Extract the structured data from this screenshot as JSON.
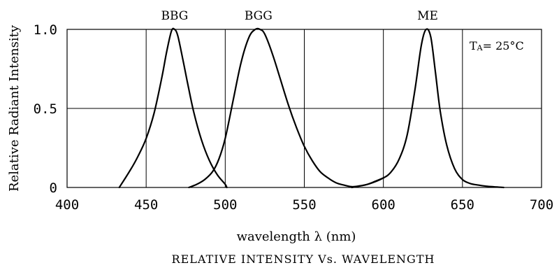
{
  "chart_data": {
    "type": "line",
    "title": "RELATIVE INTENSITY Vs. WAVELENGTH",
    "xlabel": "wavelength λ (nm)",
    "ylabel": "Relative Radiant Intensity",
    "annotation": {
      "prefix": "T",
      "sub": "A",
      "suffix": "= 25°C"
    },
    "xlim": [
      400,
      700
    ],
    "ylim": [
      0,
      1.0
    ],
    "x_ticks": [
      400,
      450,
      500,
      550,
      600,
      650,
      700
    ],
    "x_tick_labels": [
      "400",
      "450",
      "500",
      "550",
      "600",
      "650",
      "700"
    ],
    "y_ticks": [
      0,
      0.5,
      1.0
    ],
    "y_tick_labels": [
      "0",
      "0.5",
      "1.0"
    ],
    "grid": true,
    "series": [
      {
        "name": "BBG",
        "x": [
          433,
          440,
          445,
          450,
          455,
          460,
          463,
          466,
          468,
          470,
          473,
          476,
          480,
          485,
          490,
          495,
          500,
          501
        ],
        "y": [
          0.0,
          0.11,
          0.2,
          0.31,
          0.47,
          0.7,
          0.86,
          0.99,
          1.0,
          0.96,
          0.82,
          0.67,
          0.48,
          0.3,
          0.17,
          0.08,
          0.02,
          0.0
        ]
      },
      {
        "name": "BGG",
        "x": [
          477,
          482,
          487,
          492,
          496,
          500,
          505,
          510,
          515,
          519,
          522,
          525,
          530,
          535,
          540,
          545,
          550,
          555,
          560,
          565,
          570,
          575,
          580,
          585,
          590,
          595,
          600
        ],
        "y": [
          0.0,
          0.02,
          0.05,
          0.1,
          0.18,
          0.31,
          0.55,
          0.79,
          0.95,
          1.0,
          1.0,
          0.97,
          0.84,
          0.68,
          0.52,
          0.38,
          0.26,
          0.17,
          0.1,
          0.06,
          0.03,
          0.015,
          0.005,
          0.01,
          0.02,
          0.04,
          0.06
        ]
      },
      {
        "name": "ME",
        "x": [
          580,
          590,
          600,
          605,
          610,
          615,
          620,
          624,
          627,
          630,
          633,
          636,
          640,
          645,
          650,
          655,
          660,
          665,
          670,
          676
        ],
        "y": [
          0.0,
          0.02,
          0.06,
          0.1,
          0.18,
          0.33,
          0.62,
          0.9,
          1.0,
          0.95,
          0.72,
          0.48,
          0.27,
          0.12,
          0.05,
          0.025,
          0.015,
          0.008,
          0.004,
          0.0
        ]
      }
    ],
    "series_labels": [
      {
        "name": "BBG",
        "x": 468
      },
      {
        "name": "BGG",
        "x": 521
      },
      {
        "name": "ME",
        "x": 628
      }
    ]
  }
}
